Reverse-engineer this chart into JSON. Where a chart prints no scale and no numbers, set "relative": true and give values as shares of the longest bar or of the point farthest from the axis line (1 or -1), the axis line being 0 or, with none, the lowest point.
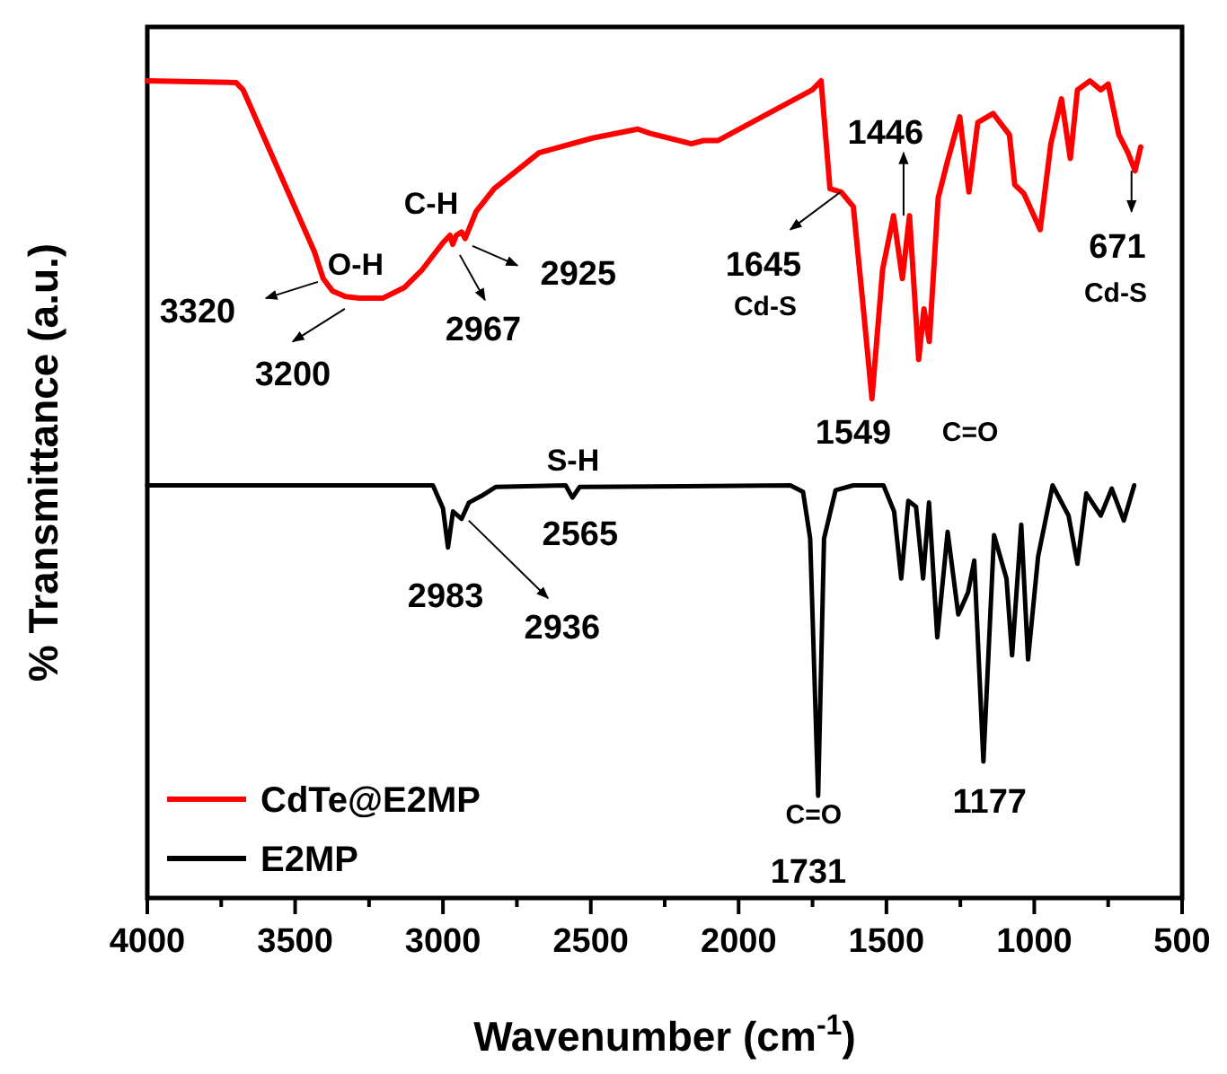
{
  "chart_data": {
    "type": "line",
    "relative": true,
    "xlabel": "Wavenumber (cm$^{-1}$)",
    "ylabel": "% Transmittance (a.u.)",
    "xlim": [
      4000,
      500
    ],
    "xticks": [
      4000,
      {
        "value": 3750,
        "label": null
      },
      3500,
      {
        "value": 3250,
        "label": null
      },
      3000,
      {
        "value": 2750,
        "label": null
      },
      2500,
      {
        "value": 2250,
        "label": null
      },
      2000,
      {
        "value": 1750,
        "label": null
      },
      1500,
      {
        "value": 1250,
        "label": null
      },
      1000,
      {
        "value": 750,
        "label": null
      },
      500
    ],
    "legend": "bottom left",
    "line_style": "solid",
    "marker": "none",
    "series": [
      {
        "name": "CdTe@E2MP",
        "color": "#ff0000",
        "x": [
          4000,
          3700,
          3676,
          3435,
          3405,
          3374,
          3330,
          3283,
          3204,
          3131,
          3070,
          3000,
          2976,
          2967,
          2955,
          2937,
          2925,
          2888,
          2827,
          2675,
          2494,
          2341,
          2301,
          2160,
          2118,
          2069,
          1751,
          1721,
          1691,
          1653,
          1612,
          1582,
          1549,
          1513,
          1476,
          1446,
          1422,
          1391,
          1373,
          1355,
          1325,
          1294,
          1252,
          1221,
          1191,
          1139,
          1084,
          1066,
          1035,
          980,
          944,
          908,
          878,
          854,
          812,
          775,
          750,
          714,
          683,
          659,
          640
        ],
        "values": [
          1.0,
          0.998,
          0.989,
          0.791,
          0.758,
          0.743,
          0.736,
          0.734,
          0.734,
          0.747,
          0.769,
          0.802,
          0.811,
          0.8,
          0.811,
          0.815,
          0.807,
          0.84,
          0.868,
          0.912,
          0.93,
          0.941,
          0.936,
          0.923,
          0.927,
          0.927,
          0.989,
          1.0,
          0.868,
          0.864,
          0.846,
          0.736,
          0.611,
          0.769,
          0.835,
          0.758,
          0.835,
          0.659,
          0.721,
          0.681,
          0.857,
          0.901,
          0.956,
          0.864,
          0.949,
          0.96,
          0.934,
          0.873,
          0.862,
          0.818,
          0.923,
          0.978,
          0.905,
          0.989,
          1.0,
          0.989,
          0.996,
          0.934,
          0.912,
          0.89,
          0.919
        ]
      },
      {
        "name": "E2MP",
        "color": "#000000",
        "x": [
          4000,
          3034,
          3000,
          2983,
          2966,
          2937,
          2912,
          2870,
          2822,
          2585,
          2562,
          2538,
          1825,
          1782,
          1758,
          1731,
          1711,
          1672,
          1612,
          1510,
          1474,
          1450,
          1426,
          1400,
          1376,
          1356,
          1328,
          1293,
          1257,
          1224,
          1203,
          1172,
          1136,
          1094,
          1075,
          1044,
          1021,
          987,
          938,
          884,
          854,
          824,
          775,
          738,
          697,
          662
        ],
        "values": [
          0.505,
          0.505,
          0.477,
          0.429,
          0.473,
          0.464,
          0.484,
          0.492,
          0.503,
          0.505,
          0.49,
          0.503,
          0.505,
          0.497,
          0.44,
          0.125,
          0.44,
          0.499,
          0.505,
          0.505,
          0.473,
          0.391,
          0.486,
          0.479,
          0.391,
          0.484,
          0.319,
          0.448,
          0.347,
          0.374,
          0.413,
          0.167,
          0.444,
          0.391,
          0.297,
          0.457,
          0.292,
          0.418,
          0.505,
          0.468,
          0.409,
          0.495,
          0.468,
          0.501,
          0.462,
          0.505
        ]
      }
    ],
    "annotations": [
      "3320",
      "O-H",
      "3200",
      "C-H",
      "2967",
      "2925",
      "1645",
      "Cd-S",
      "1446",
      "1549",
      "C=O",
      "671",
      "Cd-S",
      "S-H",
      "2565",
      "2983",
      "2936",
      "C=O",
      "1731",
      "1177"
    ]
  }
}
